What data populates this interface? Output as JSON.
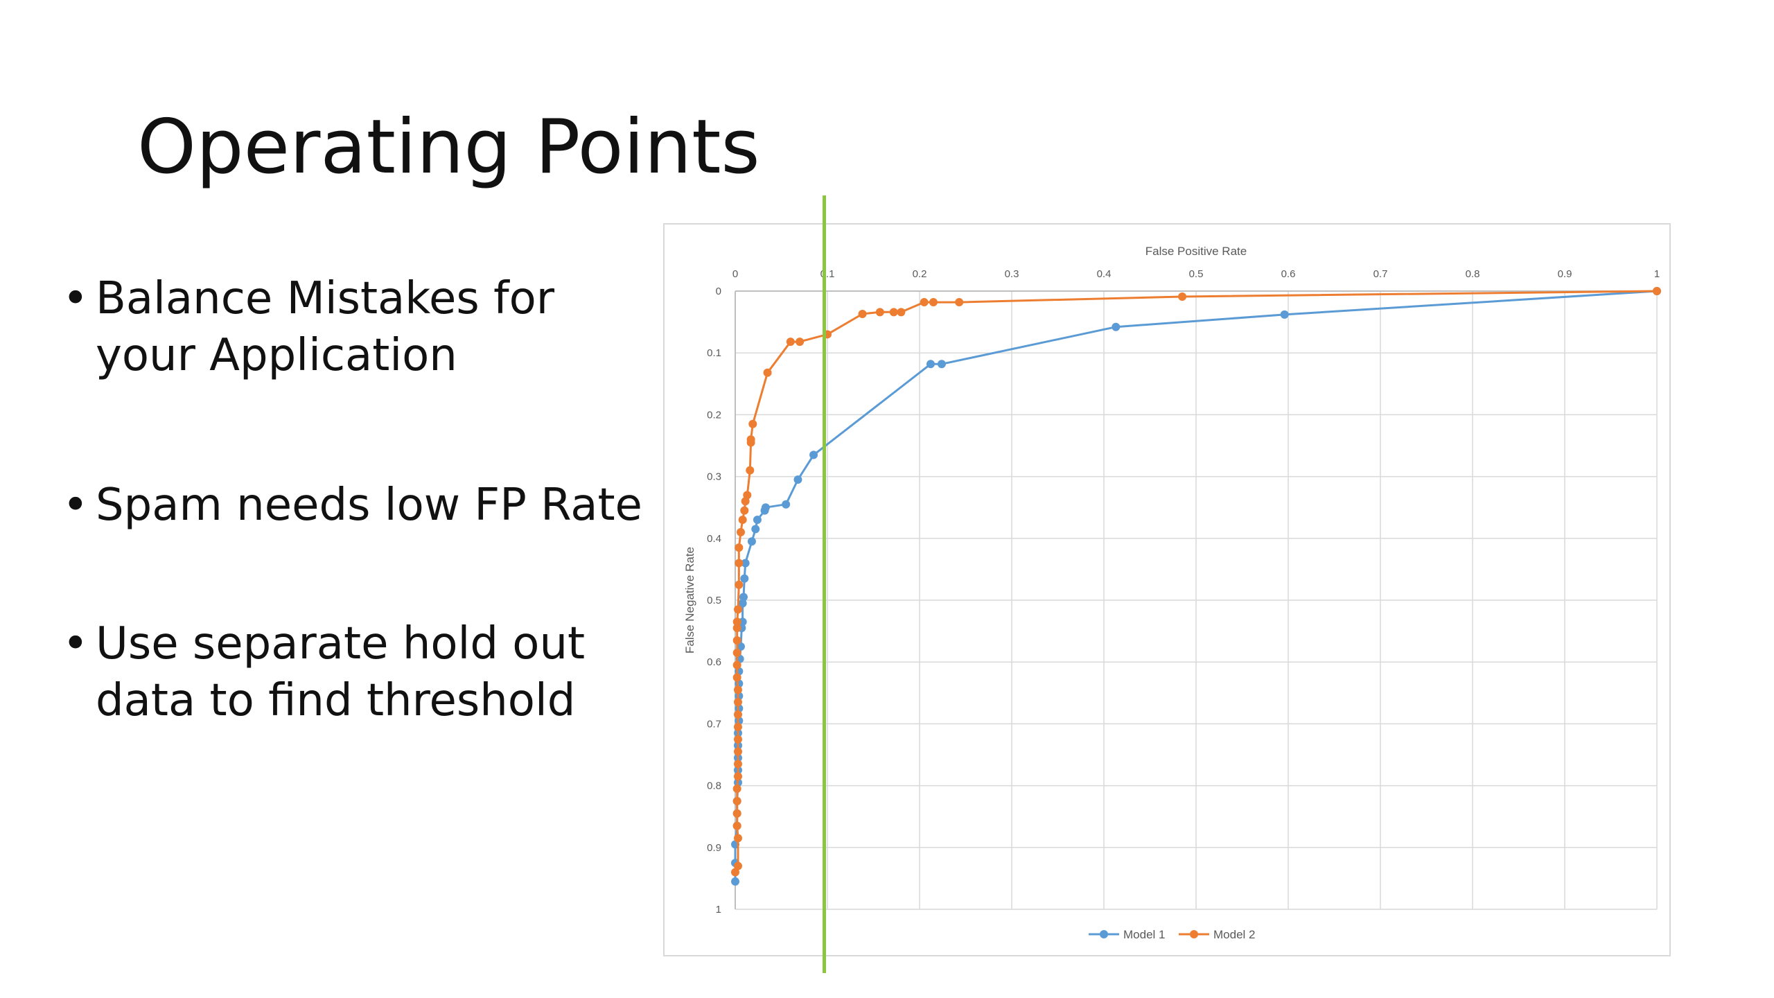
{
  "slide": {
    "title": "Operating Points",
    "bullets": [
      {
        "line1": "Balance Mistakes for",
        "line2": "your Application"
      },
      {
        "line1": "Spam needs low FP Rate",
        "line2": ""
      },
      {
        "line1": "Use separate hold out",
        "line2": "data to find threshold"
      }
    ]
  },
  "chart_data": {
    "type": "line",
    "xlabel": "False Positive Rate",
    "ylabel": "False Negative Rate",
    "xlim": [
      0,
      1
    ],
    "ylim": [
      0,
      1
    ],
    "y_inverted": true,
    "x_axis_position": "top",
    "grid": true,
    "legend_position": "bottom",
    "x_ticks": [
      "0",
      "0.1",
      "0.2",
      "0.3",
      "0.4",
      "0.5",
      "0.6",
      "0.7",
      "0.8",
      "0.9",
      "1"
    ],
    "y_ticks": [
      "0",
      "0.1",
      "0.2",
      "0.3",
      "0.4",
      "0.5",
      "0.6",
      "0.7",
      "0.8",
      "0.9",
      "1"
    ],
    "threshold_x": 0.098,
    "colors": {
      "model1": "#5b9bd5",
      "model2": "#ed7d31",
      "threshold": "#8cc63f"
    },
    "series": [
      {
        "name": "Model 1",
        "points": [
          [
            0.0,
            0.955
          ],
          [
            0.0,
            0.925
          ],
          [
            0.0,
            0.895
          ],
          [
            0.002,
            0.865
          ],
          [
            0.002,
            0.845
          ],
          [
            0.002,
            0.825
          ],
          [
            0.003,
            0.795
          ],
          [
            0.003,
            0.775
          ],
          [
            0.003,
            0.755
          ],
          [
            0.003,
            0.735
          ],
          [
            0.003,
            0.715
          ],
          [
            0.004,
            0.695
          ],
          [
            0.004,
            0.675
          ],
          [
            0.004,
            0.655
          ],
          [
            0.004,
            0.635
          ],
          [
            0.004,
            0.615
          ],
          [
            0.005,
            0.595
          ],
          [
            0.006,
            0.575
          ],
          [
            0.007,
            0.545
          ],
          [
            0.008,
            0.535
          ],
          [
            0.008,
            0.505
          ],
          [
            0.009,
            0.495
          ],
          [
            0.01,
            0.465
          ],
          [
            0.011,
            0.44
          ],
          [
            0.018,
            0.405
          ],
          [
            0.022,
            0.385
          ],
          [
            0.024,
            0.37
          ],
          [
            0.032,
            0.355
          ],
          [
            0.033,
            0.35
          ],
          [
            0.055,
            0.345
          ],
          [
            0.068,
            0.305
          ],
          [
            0.085,
            0.265
          ],
          [
            0.212,
            0.118
          ],
          [
            0.224,
            0.118
          ],
          [
            0.413,
            0.058
          ],
          [
            0.596,
            0.038
          ],
          [
            1.0,
            0.0
          ]
        ]
      },
      {
        "name": "Model 2",
        "points": [
          [
            0.0,
            0.94
          ],
          [
            0.003,
            0.93
          ],
          [
            0.003,
            0.885
          ],
          [
            0.002,
            0.865
          ],
          [
            0.002,
            0.845
          ],
          [
            0.002,
            0.825
          ],
          [
            0.002,
            0.805
          ],
          [
            0.003,
            0.785
          ],
          [
            0.003,
            0.765
          ],
          [
            0.003,
            0.745
          ],
          [
            0.003,
            0.725
          ],
          [
            0.003,
            0.705
          ],
          [
            0.003,
            0.685
          ],
          [
            0.003,
            0.665
          ],
          [
            0.003,
            0.645
          ],
          [
            0.002,
            0.625
          ],
          [
            0.002,
            0.605
          ],
          [
            0.002,
            0.585
          ],
          [
            0.002,
            0.565
          ],
          [
            0.002,
            0.545
          ],
          [
            0.002,
            0.535
          ],
          [
            0.003,
            0.515
          ],
          [
            0.004,
            0.475
          ],
          [
            0.004,
            0.44
          ],
          [
            0.004,
            0.415
          ],
          [
            0.006,
            0.39
          ],
          [
            0.008,
            0.37
          ],
          [
            0.01,
            0.355
          ],
          [
            0.011,
            0.34
          ],
          [
            0.013,
            0.33
          ],
          [
            0.016,
            0.29
          ],
          [
            0.017,
            0.245
          ],
          [
            0.017,
            0.24
          ],
          [
            0.019,
            0.215
          ],
          [
            0.035,
            0.132
          ],
          [
            0.06,
            0.082
          ],
          [
            0.07,
            0.082
          ],
          [
            0.1,
            0.07
          ],
          [
            0.138,
            0.037
          ],
          [
            0.157,
            0.034
          ],
          [
            0.172,
            0.034
          ],
          [
            0.18,
            0.034
          ],
          [
            0.205,
            0.018
          ],
          [
            0.215,
            0.018
          ],
          [
            0.243,
            0.018
          ],
          [
            0.485,
            0.009
          ],
          [
            1.0,
            0.0
          ]
        ]
      }
    ]
  }
}
